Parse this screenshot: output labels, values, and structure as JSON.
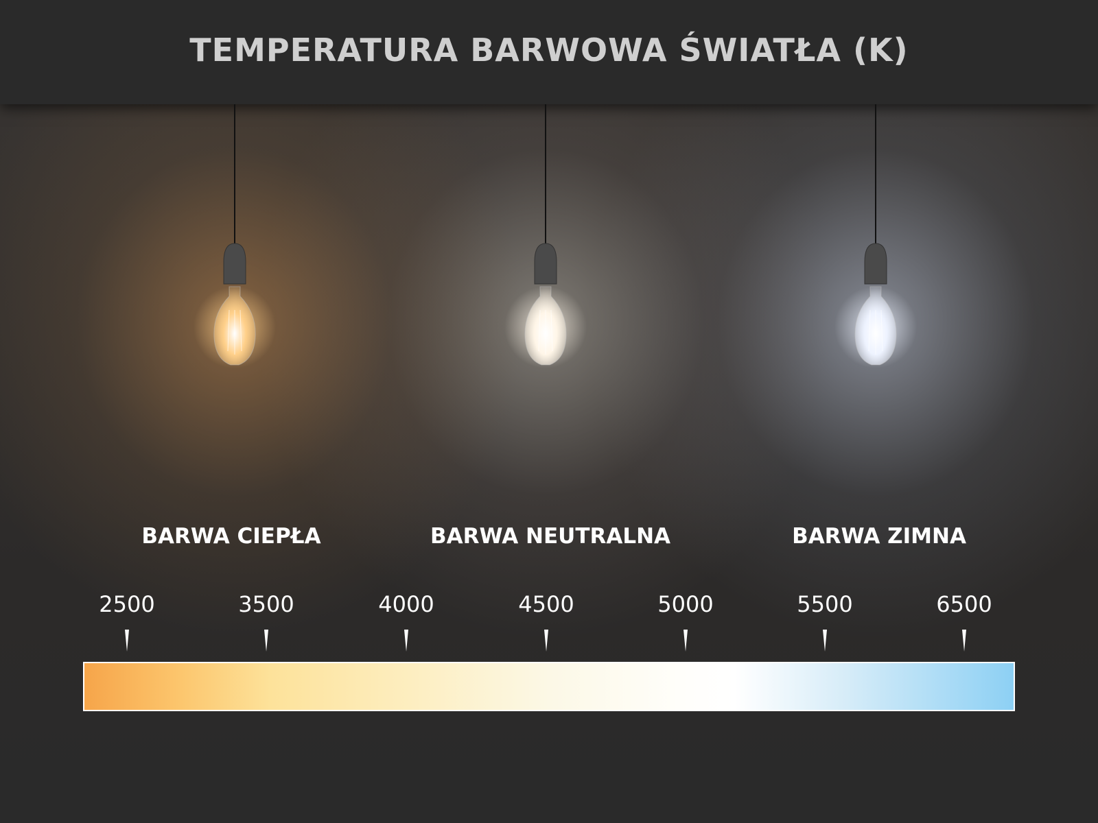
{
  "title": "TEMPERATURA BARWOWA ŚWIATŁA (K)",
  "bulbs": [
    {
      "label": "BARWA CIEPŁA",
      "glow": "#ffd08a"
    },
    {
      "label": "BARWA NEUTRALNA",
      "glow": "#fff6e8"
    },
    {
      "label": "BARWA ZIMNA",
      "glow": "#eef3ff"
    }
  ],
  "scale": {
    "ticks": [
      "2500",
      "3500",
      "4000",
      "4500",
      "5000",
      "5500",
      "6500"
    ],
    "gradient_colors": [
      "#f6a54a",
      "#fde29a",
      "#fcf8e6",
      "#ffffff",
      "#8dd0f4"
    ]
  }
}
